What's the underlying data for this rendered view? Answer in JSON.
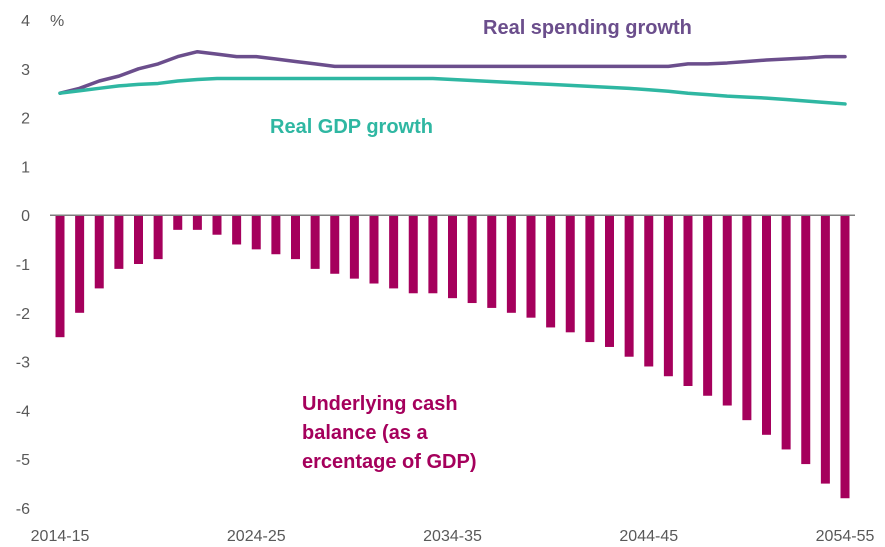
{
  "colors": {
    "bar": "#a5005c",
    "spending_line": "#6b4e8c",
    "gdp_line": "#2fb7a2",
    "axis": "#7f7f7f",
    "tick_text": "#595959"
  },
  "chart_data": {
    "type": "bar",
    "y_unit": "%",
    "ylim": [
      -6,
      4
    ],
    "yticks": [
      4,
      3,
      2,
      1,
      0,
      -1,
      -2,
      -3,
      -4,
      -5,
      -6
    ],
    "grid": false,
    "x_tick_labels": [
      "2014-15",
      "2024-25",
      "2034-35",
      "2044-45",
      "2054-55"
    ],
    "categories": [
      "2014-15",
      "2015-16",
      "2016-17",
      "2017-18",
      "2018-19",
      "2019-20",
      "2020-21",
      "2021-22",
      "2022-23",
      "2023-24",
      "2024-25",
      "2025-26",
      "2026-27",
      "2027-28",
      "2028-29",
      "2029-30",
      "2030-31",
      "2031-32",
      "2032-33",
      "2033-34",
      "2034-35",
      "2035-36",
      "2036-37",
      "2037-38",
      "2038-39",
      "2039-40",
      "2040-41",
      "2041-42",
      "2042-43",
      "2043-44",
      "2044-45",
      "2045-46",
      "2046-47",
      "2047-48",
      "2048-49",
      "2049-50",
      "2050-51",
      "2051-52",
      "2052-53",
      "2053-54",
      "2054-55"
    ],
    "series": [
      {
        "name": "Underlying cash balance (as a percentage of GDP)",
        "kind": "bar",
        "values": [
          -2.5,
          -2.0,
          -1.5,
          -1.1,
          -1.0,
          -0.9,
          -0.3,
          -0.3,
          -0.4,
          -0.6,
          -0.7,
          -0.8,
          -0.9,
          -1.1,
          -1.2,
          -1.3,
          -1.4,
          -1.5,
          -1.6,
          -1.6,
          -1.7,
          -1.8,
          -1.9,
          -2.0,
          -2.1,
          -2.3,
          -2.4,
          -2.6,
          -2.7,
          -2.9,
          -3.1,
          -3.3,
          -3.5,
          -3.7,
          -3.9,
          -4.2,
          -4.5,
          -4.8,
          -5.1,
          -5.5,
          -5.8
        ]
      },
      {
        "name": "Real spending growth",
        "kind": "line",
        "values": [
          2.5,
          2.6,
          2.75,
          2.85,
          3.0,
          3.1,
          3.25,
          3.35,
          3.3,
          3.25,
          3.25,
          3.2,
          3.15,
          3.1,
          3.05,
          3.05,
          3.05,
          3.05,
          3.05,
          3.05,
          3.05,
          3.05,
          3.05,
          3.05,
          3.05,
          3.05,
          3.05,
          3.05,
          3.05,
          3.05,
          3.05,
          3.05,
          3.1,
          3.1,
          3.12,
          3.15,
          3.18,
          3.2,
          3.22,
          3.25,
          3.25
        ]
      },
      {
        "name": "Real GDP growth",
        "kind": "line",
        "values": [
          2.5,
          2.55,
          2.6,
          2.65,
          2.68,
          2.7,
          2.75,
          2.78,
          2.8,
          2.8,
          2.8,
          2.8,
          2.8,
          2.8,
          2.8,
          2.8,
          2.8,
          2.8,
          2.8,
          2.8,
          2.78,
          2.76,
          2.74,
          2.72,
          2.7,
          2.68,
          2.66,
          2.64,
          2.62,
          2.6,
          2.57,
          2.54,
          2.5,
          2.47,
          2.44,
          2.42,
          2.4,
          2.37,
          2.34,
          2.31,
          2.28
        ]
      }
    ]
  }
}
